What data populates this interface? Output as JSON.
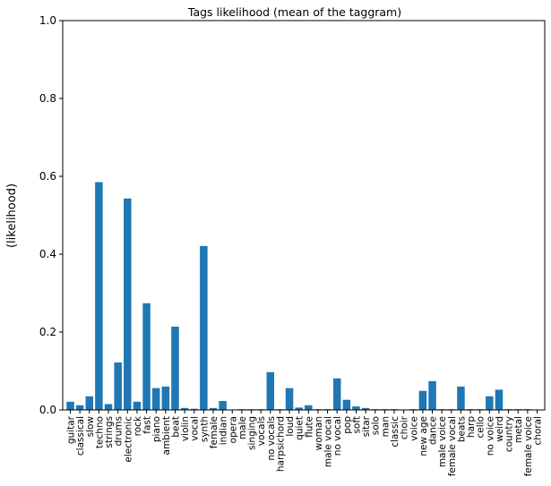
{
  "chart_data": {
    "type": "bar",
    "title": "Tags likelihood (mean of the taggram)",
    "xlabel": "",
    "ylabel": "(likelihood)",
    "ylim": [
      0,
      1
    ],
    "yticks": [
      0.0,
      0.2,
      0.4,
      0.6,
      0.8,
      1.0
    ],
    "ytick_labels": [
      "0.0",
      "0.2",
      "0.4",
      "0.6",
      "0.8",
      "1.0"
    ],
    "grid": false,
    "bar_color": "#1f77b4",
    "categories": [
      "guitar",
      "classical",
      "slow",
      "techno",
      "strings",
      "drums",
      "electronic",
      "rock",
      "fast",
      "piano",
      "ambient",
      "beat",
      "violin",
      "vocal",
      "synth",
      "female",
      "indian",
      "opera",
      "male",
      "singing",
      "vocals",
      "no vocals",
      "harpsichord",
      "loud",
      "quiet",
      "flute",
      "woman",
      "male vocal",
      "no vocal",
      "pop",
      "soft",
      "sitar",
      "solo",
      "man",
      "classic",
      "choir",
      "voice",
      "new age",
      "dance",
      "male voice",
      "female vocal",
      "beats",
      "harp",
      "cello",
      "no voice",
      "weird",
      "country",
      "metal",
      "female voice",
      "choral"
    ],
    "values": [
      0.021,
      0.012,
      0.035,
      0.585,
      0.015,
      0.122,
      0.543,
      0.021,
      0.274,
      0.056,
      0.06,
      0.214,
      0.005,
      0.003,
      0.421,
      0.005,
      0.023,
      0.001,
      0.002,
      0.002,
      0.002,
      0.097,
      0.002,
      0.056,
      0.006,
      0.012,
      0.002,
      0.002,
      0.081,
      0.026,
      0.009,
      0.005,
      0.002,
      0.002,
      0.002,
      0.001,
      0.002,
      0.049,
      0.074,
      0.002,
      0.002,
      0.06,
      0.002,
      0.002,
      0.035,
      0.052,
      0.002,
      0.002,
      0.002,
      0.001
    ]
  }
}
